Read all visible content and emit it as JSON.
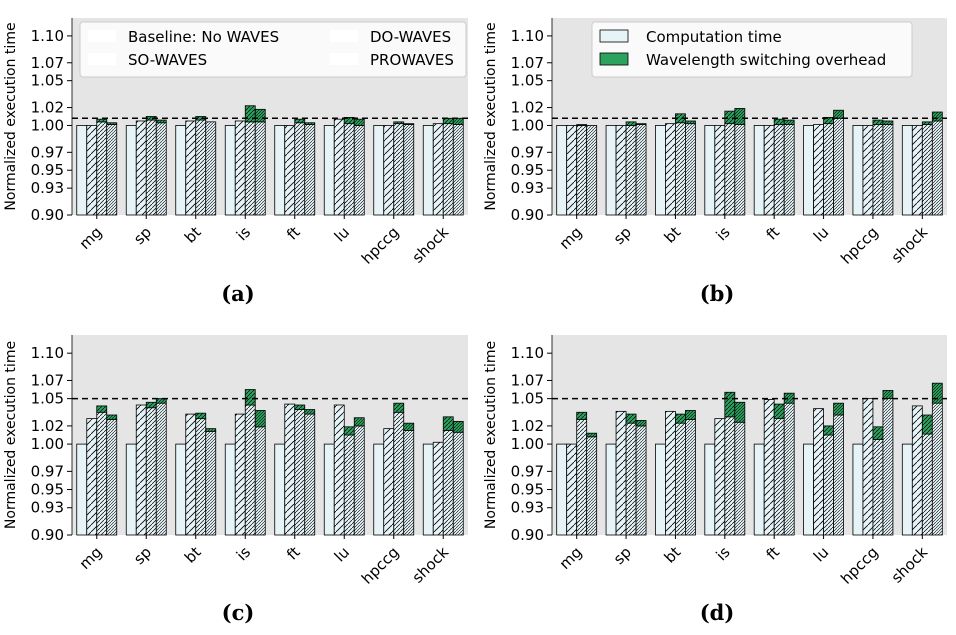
{
  "colors": {
    "panel_bg": "#e5e5e5",
    "bar_fill": "#e6f4f8",
    "bar_edge": "#000000",
    "overhead": "#2ca25f",
    "reference_line": "#000000"
  },
  "legend_a": {
    "entries": [
      "Baseline: No WAVES",
      "DO-WAVES",
      "SO-WAVES",
      "PROWAVES"
    ]
  },
  "legend_b": {
    "entries": [
      "Computation time",
      "Wavelength switching overhead"
    ]
  },
  "chart_data": [
    {
      "type": "bar",
      "caption": "(a)",
      "ylabel": "Normalized execution time",
      "ylim": [
        0.9,
        1.12
      ],
      "yticks": [
        "0.90",
        "0.93",
        "0.95",
        "0.97",
        "1.00",
        "1.02",
        "1.05",
        "1.07",
        "1.10"
      ],
      "reference_line": 1.008,
      "categories": [
        "mg",
        "sp",
        "bt",
        "is",
        "ft",
        "lu",
        "hpccg",
        "shock"
      ],
      "series": [
        {
          "name": "Baseline: No WAVES",
          "computation": [
            1.0,
            1.0,
            1.0,
            1.0,
            1.0,
            1.0,
            1.0,
            1.0
          ],
          "overhead": [
            0,
            0,
            0,
            0,
            0,
            0,
            0,
            0
          ]
        },
        {
          "name": "DO-WAVES",
          "computation": [
            1.0,
            1.005,
            1.005,
            1.005,
            1.0,
            1.007,
            1.0,
            1.002
          ],
          "overhead": [
            0,
            0,
            0,
            0,
            0,
            0,
            0,
            0
          ]
        },
        {
          "name": "SO-WAVES",
          "computation": [
            1.004,
            1.006,
            1.006,
            1.004,
            1.003,
            1.002,
            1.002,
            1.002
          ],
          "overhead": [
            0.003,
            0.004,
            0.004,
            0.018,
            0.004,
            0.007,
            0.002,
            0.006
          ]
        },
        {
          "name": "PROWAVES",
          "computation": [
            1.001,
            1.003,
            1.004,
            1.004,
            1.001,
            1.0,
            1.001,
            1.001
          ],
          "overhead": [
            0.002,
            0.003,
            0.0,
            0.014,
            0.002,
            0.007,
            0.001,
            0.007
          ]
        }
      ]
    },
    {
      "type": "bar",
      "caption": "(b)",
      "ylabel": "Normalized execution time",
      "ylim": [
        0.9,
        1.12
      ],
      "yticks": [
        "0.90",
        "0.93",
        "0.95",
        "0.97",
        "1.00",
        "1.02",
        "1.05",
        "1.07",
        "1.10"
      ],
      "reference_line": 1.008,
      "categories": [
        "mg",
        "sp",
        "bt",
        "is",
        "ft",
        "lu",
        "hpccg",
        "shock"
      ],
      "series": [
        {
          "name": "Baseline: No WAVES",
          "computation": [
            1.0,
            1.0,
            1.0,
            1.0,
            1.0,
            1.0,
            1.0,
            1.0
          ],
          "overhead": [
            0,
            0,
            0,
            0,
            0,
            0,
            0,
            0
          ]
        },
        {
          "name": "DO-WAVES",
          "computation": [
            1.0,
            1.0,
            1.002,
            1.0,
            1.0,
            1.001,
            1.0,
            1.0
          ],
          "overhead": [
            0,
            0,
            0,
            0,
            0,
            0,
            0,
            0
          ]
        },
        {
          "name": "SO-WAVES",
          "computation": [
            1.0,
            1.0,
            1.003,
            1.002,
            1.001,
            1.002,
            1.001,
            1.001
          ],
          "overhead": [
            0.001,
            0.004,
            0.01,
            0.014,
            0.006,
            0.007,
            0.005,
            0.003
          ]
        },
        {
          "name": "PROWAVES",
          "computation": [
            1.0,
            1.001,
            1.002,
            1.001,
            1.001,
            1.008,
            1.001,
            1.005
          ],
          "overhead": [
            0.0,
            0.001,
            0.003,
            0.018,
            0.005,
            0.009,
            0.004,
            0.01
          ]
        }
      ]
    },
    {
      "type": "bar",
      "caption": "(c)",
      "ylabel": "Normalized execution time",
      "ylim": [
        0.9,
        1.12
      ],
      "yticks": [
        "0.90",
        "0.93",
        "0.95",
        "0.97",
        "1.00",
        "1.02",
        "1.05",
        "1.07",
        "1.10"
      ],
      "reference_line": 1.05,
      "categories": [
        "mg",
        "sp",
        "bt",
        "is",
        "ft",
        "lu",
        "hpccg",
        "shock"
      ],
      "series": [
        {
          "name": "Baseline: No WAVES",
          "computation": [
            1.0,
            1.0,
            1.0,
            1.0,
            1.0,
            1.0,
            1.0,
            1.0
          ],
          "overhead": [
            0,
            0,
            0,
            0,
            0,
            0,
            0,
            0
          ]
        },
        {
          "name": "DO-WAVES",
          "computation": [
            1.028,
            1.043,
            1.033,
            1.033,
            1.044,
            1.043,
            1.017,
            1.002
          ],
          "overhead": [
            0,
            0,
            0,
            0,
            0,
            0,
            0,
            0
          ]
        },
        {
          "name": "SO-WAVES",
          "computation": [
            1.035,
            1.04,
            1.028,
            1.043,
            1.038,
            1.01,
            1.035,
            1.015
          ],
          "overhead": [
            0.007,
            0.006,
            0.006,
            0.017,
            0.005,
            0.009,
            0.01,
            0.015
          ]
        },
        {
          "name": "PROWAVES",
          "computation": [
            1.027,
            1.045,
            1.014,
            1.019,
            1.033,
            1.02,
            1.015,
            1.013
          ],
          "overhead": [
            0.005,
            0.005,
            0.003,
            0.018,
            0.005,
            0.009,
            0.008,
            0.012
          ]
        }
      ]
    },
    {
      "type": "bar",
      "caption": "(d)",
      "ylabel": "Normalized execution time",
      "ylim": [
        0.9,
        1.12
      ],
      "yticks": [
        "0.90",
        "0.93",
        "0.95",
        "0.97",
        "1.00",
        "1.02",
        "1.05",
        "1.07",
        "1.10"
      ],
      "reference_line": 1.05,
      "categories": [
        "mg",
        "sp",
        "bt",
        "is",
        "ft",
        "lu",
        "hpccg",
        "shock"
      ],
      "series": [
        {
          "name": "Baseline: No WAVES",
          "computation": [
            1.0,
            1.0,
            1.0,
            1.0,
            1.0,
            1.0,
            1.0,
            1.0
          ],
          "overhead": [
            0,
            0,
            0,
            0,
            0,
            0,
            0,
            0
          ]
        },
        {
          "name": "DO-WAVES",
          "computation": [
            1.0,
            1.036,
            1.036,
            1.028,
            1.049,
            1.039,
            1.05,
            1.042
          ],
          "overhead": [
            0,
            0,
            0,
            0,
            0,
            0,
            0,
            0
          ]
        },
        {
          "name": "SO-WAVES",
          "computation": [
            1.027,
            1.023,
            1.023,
            1.03,
            1.028,
            1.01,
            1.005,
            1.011
          ],
          "overhead": [
            0.008,
            0.01,
            0.01,
            0.027,
            0.016,
            0.01,
            0.014,
            0.021
          ]
        },
        {
          "name": "PROWAVES",
          "computation": [
            1.008,
            1.02,
            1.027,
            1.024,
            1.045,
            1.032,
            1.05,
            1.045
          ],
          "overhead": [
            0.004,
            0.006,
            0.01,
            0.022,
            0.011,
            0.013,
            0.009,
            0.022
          ]
        }
      ]
    }
  ]
}
